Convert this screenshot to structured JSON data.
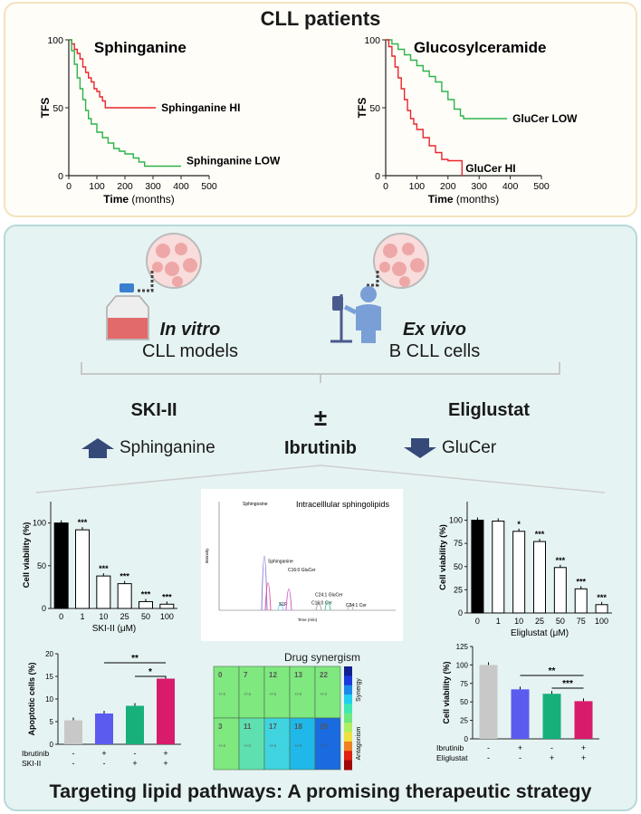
{
  "top": {
    "title": "CLL patients",
    "km_left": {
      "title": "Sphinganine",
      "ylabel": "TFS",
      "xlabel_bold": "Time",
      "xlabel_unit": "(months)",
      "xticks": [
        "0",
        "100",
        "200",
        "300",
        "400",
        "500"
      ],
      "yticks": [
        "0",
        "50",
        "100"
      ],
      "series": [
        {
          "name": "Sphinganine HI",
          "color": "#e8262b",
          "points": [
            [
              0,
              100
            ],
            [
              10,
              97
            ],
            [
              20,
              93
            ],
            [
              30,
              90
            ],
            [
              40,
              86
            ],
            [
              50,
              80
            ],
            [
              60,
              76
            ],
            [
              70,
              72
            ],
            [
              80,
              69
            ],
            [
              90,
              64
            ],
            [
              100,
              62
            ],
            [
              110,
              58
            ],
            [
              120,
              55
            ],
            [
              130,
              50
            ],
            [
              310,
              50
            ]
          ]
        },
        {
          "name": "Sphinganine LOW",
          "color": "#2db34a",
          "points": [
            [
              0,
              100
            ],
            [
              10,
              92
            ],
            [
              20,
              82
            ],
            [
              30,
              72
            ],
            [
              40,
              64
            ],
            [
              50,
              56
            ],
            [
              60,
              48
            ],
            [
              70,
              42
            ],
            [
              80,
              38
            ],
            [
              100,
              32
            ],
            [
              120,
              28
            ],
            [
              140,
              24
            ],
            [
              160,
              20
            ],
            [
              180,
              18
            ],
            [
              200,
              16
            ],
            [
              230,
              13
            ],
            [
              250,
              10
            ],
            [
              270,
              7
            ],
            [
              400,
              7
            ]
          ]
        }
      ]
    },
    "km_right": {
      "title": "Glucosylceramide",
      "ylabel": "TFS",
      "xlabel_bold": "Time",
      "xlabel_unit": "(months)",
      "xticks": [
        "0",
        "100",
        "200",
        "300",
        "400",
        "500"
      ],
      "yticks": [
        "0",
        "50",
        "100"
      ],
      "series": [
        {
          "name": "GluCer LOW",
          "color": "#2db34a",
          "points": [
            [
              0,
              100
            ],
            [
              20,
              97
            ],
            [
              40,
              93
            ],
            [
              60,
              89
            ],
            [
              80,
              85
            ],
            [
              100,
              81
            ],
            [
              120,
              77
            ],
            [
              140,
              73
            ],
            [
              160,
              69
            ],
            [
              180,
              62
            ],
            [
              200,
              56
            ],
            [
              220,
              49
            ],
            [
              240,
              44
            ],
            [
              250,
              42
            ],
            [
              390,
              42
            ]
          ]
        },
        {
          "name": "GluCer HI",
          "color": "#e8262b",
          "points": [
            [
              0,
              100
            ],
            [
              10,
              95
            ],
            [
              20,
              88
            ],
            [
              30,
              80
            ],
            [
              40,
              72
            ],
            [
              50,
              64
            ],
            [
              60,
              56
            ],
            [
              70,
              48
            ],
            [
              80,
              42
            ],
            [
              90,
              38
            ],
            [
              100,
              34
            ],
            [
              120,
              28
            ],
            [
              140,
              22
            ],
            [
              160,
              17
            ],
            [
              180,
              12
            ],
            [
              200,
              11
            ],
            [
              240,
              11
            ],
            [
              245,
              0
            ]
          ]
        }
      ]
    }
  },
  "middle": {
    "invitro_italic": "In vitro",
    "invitro_rest": "CLL models",
    "exvivo_italic": "Ex vivo",
    "exvivo_rest": "B CLL cells",
    "left_drug": "SKI-II",
    "right_drug": "Eliglustat",
    "plus_minus": "±",
    "center_drug": "Ibrutinib",
    "left_effect": "Sphinganine",
    "right_effect": "GluCer"
  },
  "bar_ski": {
    "ylabel": "Cell viability (%)",
    "xlabel": "SKI-II (μM)",
    "categories": [
      "0",
      "1",
      "10",
      "25",
      "50",
      "100"
    ],
    "values": [
      100,
      92,
      38,
      29,
      8,
      5
    ],
    "sig": [
      "",
      "***",
      "***",
      "***",
      "***",
      "***"
    ],
    "yticks": [
      "0",
      "50",
      "100"
    ],
    "ylim": [
      0,
      125
    ]
  },
  "chromatogram": {
    "title": "Intracelllular sphingolipids",
    "ylabel": "Intensity",
    "xlabel": "Time (min)",
    "peaks": [
      {
        "label": "Sphingosine",
        "height": 100
      },
      {
        "label": "Sphinganine",
        "height": 48
      },
      {
        "label": "S1P",
        "height": 8
      },
      {
        "label": "C16:0 GluCer",
        "height": 36
      },
      {
        "label": "C16:0 Cer",
        "height": 9
      },
      {
        "label": "C24:1 GluCer",
        "height": 12
      },
      {
        "label": "C24:1 Cer",
        "height": 7
      }
    ]
  },
  "bar_eli": {
    "ylabel": "Cell viability (%)",
    "xlabel": "Eliglustat (μM)",
    "categories": [
      "0",
      "1",
      "10",
      "25",
      "50",
      "75",
      "100"
    ],
    "values": [
      100,
      99,
      88,
      77,
      49,
      26,
      9
    ],
    "sig": [
      "",
      "",
      "*",
      "***",
      "***",
      "***",
      "***"
    ],
    "yticks": [
      "0",
      "25",
      "50",
      "75",
      "100"
    ],
    "ylim": [
      0,
      120
    ]
  },
  "apoptosis": {
    "ylabel": "Apoptotic cells (%)",
    "yticks": [
      "0",
      "5",
      "10",
      "15",
      "20"
    ],
    "ylim": [
      0,
      20
    ],
    "values": [
      5.3,
      6.8,
      8.5,
      14.5
    ],
    "colors": [
      "#c8c8c8",
      "#5b5bf0",
      "#17b07a",
      "#d81b6a"
    ],
    "row_labels": [
      "Ibrutinib",
      "SKI-II"
    ],
    "row1": [
      "-",
      "+",
      "-",
      "+"
    ],
    "row2": [
      "-",
      "-",
      "+",
      "+"
    ],
    "sig_long": "**",
    "sig_short": "*"
  },
  "synergy": {
    "title": "Drug synergism",
    "row1": [
      "0",
      "7",
      "12",
      "13",
      "22"
    ],
    "row2": [
      "3",
      "11",
      "17",
      "18",
      "29"
    ],
    "sub": "+/-4",
    "legend_top": "Synergy",
    "legend_bottom": "Antagonism"
  },
  "viability_combo": {
    "ylabel": "Cell viability (%)",
    "yticks": [
      "0",
      "25",
      "50",
      "75",
      "100",
      "125"
    ],
    "ylim": [
      0,
      125
    ],
    "values": [
      100,
      67,
      61,
      51
    ],
    "colors": [
      "#c8c8c8",
      "#5b5bf0",
      "#17b07a",
      "#d81b6a"
    ],
    "row_labels": [
      "Ibrutinib",
      "Eliglustat"
    ],
    "row1": [
      "-",
      "+",
      "-",
      "+"
    ],
    "row2": [
      "-",
      "-",
      "+",
      "+"
    ],
    "sig_long": "**",
    "sig_short": "***"
  },
  "footer": "Targeting lipid pathways: A promising therapeutic strategy"
}
